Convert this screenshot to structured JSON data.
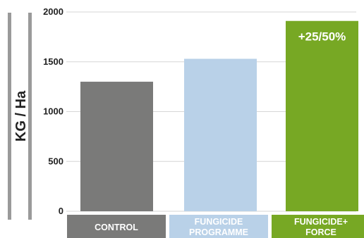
{
  "chart_data": {
    "type": "bar",
    "title": "",
    "xlabel": "",
    "ylabel": "KG / Ha",
    "ylim": [
      0,
      2000
    ],
    "yticks": [
      0,
      500,
      1000,
      1500,
      2000
    ],
    "grid": true,
    "categories": [
      {
        "lines": [
          "CONTROL"
        ]
      },
      {
        "lines": [
          "FUNGICIDE",
          "PROGRAMME"
        ]
      },
      {
        "lines": [
          "FUNGICIDE+",
          "FORCE"
        ]
      }
    ],
    "values": [
      1300,
      1530,
      1910
    ],
    "bar_colors": [
      "#7a7a79",
      "#b9d1e8",
      "#77a824"
    ],
    "category_label_backgrounds": [
      "#7a7a79",
      "#b9d1e8",
      "#77a824"
    ],
    "data_labels": [
      "",
      "",
      "+25/50%"
    ]
  }
}
